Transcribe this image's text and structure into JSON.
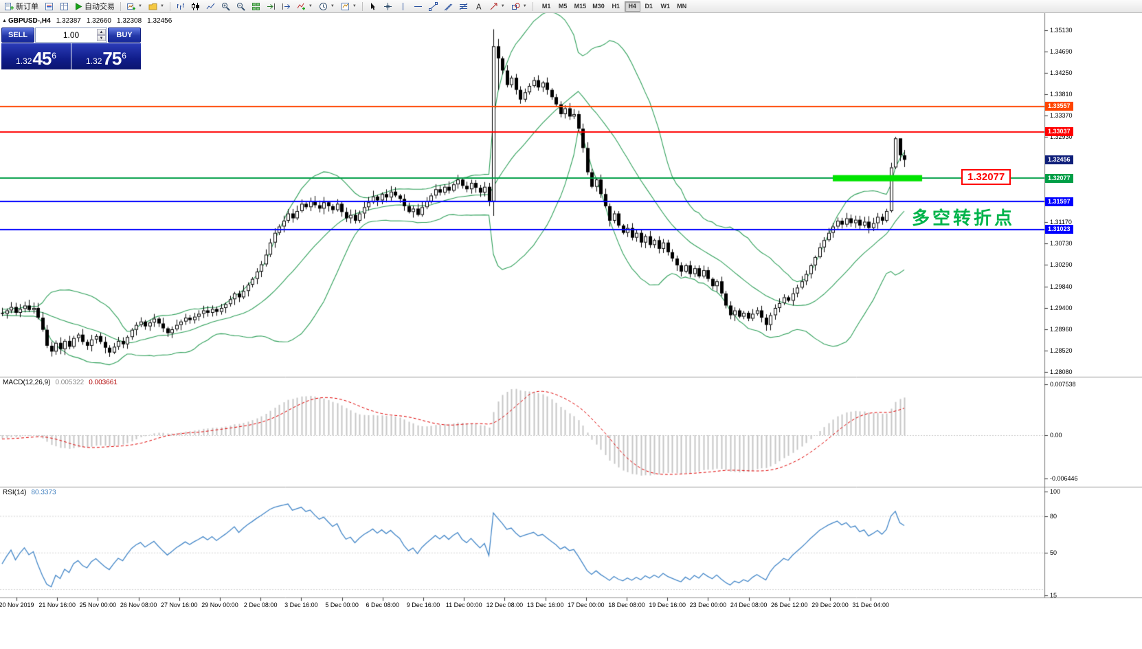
{
  "icons": {
    "collapse_triangle": "▲",
    "dropdown_caret": "▼",
    "spinner_up": "▲",
    "spinner_down": "▼"
  },
  "toolbar": {
    "new_order_label": "新订单",
    "autotrade_label": "自动交易",
    "timeframes": [
      "M1",
      "M5",
      "M15",
      "M30",
      "H1",
      "H4",
      "D1",
      "W1",
      "MN"
    ],
    "active_timeframe": "H4"
  },
  "chart": {
    "title": {
      "symbol_period": "GBPUSD-,H4",
      "open": "1.32387",
      "high": "1.32660",
      "low": "1.32308",
      "close": "1.32456"
    },
    "trade_panel": {
      "sell_label": "SELL",
      "buy_label": "BUY",
      "volume": "1.00",
      "sell_price": {
        "base": "1.32",
        "pips": "45",
        "point": "6"
      },
      "buy_price": {
        "base": "1.32",
        "pips": "75",
        "point": "6"
      }
    },
    "annotations": {
      "turning_point_text": "多空转折点",
      "turning_point_color": "#00B34A",
      "price_label_text": "1.32077",
      "price_label_color": "#FF0000"
    }
  },
  "chart_data": {
    "type": "candlestick",
    "symbol": "GBPUSD-",
    "timeframe": "H4",
    "price_axis_range": {
      "top": 1.35499,
      "bottom": 1.27995
    },
    "price_axis_ticks": [
      "1.35130",
      "1.34690",
      "1.34250",
      "1.33810",
      "1.33370",
      "1.32930",
      "1.31170",
      "1.30730",
      "1.30290",
      "1.29840",
      "1.29400",
      "1.28960",
      "1.28520",
      "1.28080"
    ],
    "price_tags": [
      {
        "text": "1.33557",
        "color": "#FF4500"
      },
      {
        "text": "1.33037",
        "color": "#FF0000"
      },
      {
        "text": "1.32456",
        "color": "#0F1F7A"
      },
      {
        "text": "1.32077",
        "color": "#009E46"
      },
      {
        "text": "1.31597",
        "color": "#0000FF"
      },
      {
        "text": "1.31023",
        "color": "#0000FF"
      }
    ],
    "hlines": [
      {
        "price": 1.33557,
        "color": "#FF4500",
        "width": 2
      },
      {
        "price": 1.33037,
        "color": "#FF0000",
        "width": 2
      },
      {
        "price": 1.32077,
        "color": "#009E46",
        "width": 2
      },
      {
        "price": 1.31597,
        "color": "#0000FF",
        "width": 2
      },
      {
        "price": 1.31023,
        "color": "#0000FF",
        "width": 2
      }
    ],
    "green_zone": {
      "price": 1.32077,
      "from_bar": 186,
      "to_bar": 206,
      "color": "#00E400",
      "height": 9
    },
    "bollinger": {
      "period": 20,
      "deviation": 2,
      "color": "#2FA05A"
    },
    "macd": {
      "label": "MACD(12,26,9)",
      "main_value": "0.005322",
      "signal_value": "0.003661",
      "axis_ticks": [
        "0.007538",
        "0.00",
        "-0.006446"
      ],
      "hist_color": "#C6C6C6",
      "signal_color": "#E00000"
    },
    "rsi": {
      "label": "RSI(14)",
      "value": "80.3373",
      "axis_ticks": [
        "100",
        "80",
        "50",
        "15"
      ],
      "levels": [
        80,
        50,
        20
      ],
      "color": "#4286C8"
    },
    "time_labels": [
      "20 Nov 2019",
      "21 Nov 16:00",
      "25 Nov 00:00",
      "26 Nov 08:00",
      "27 Nov 16:00",
      "29 Nov 00:00",
      "2 Dec 08:00",
      "3 Dec 16:00",
      "5 Dec 00:00",
      "6 Dec 08:00",
      "9 Dec 16:00",
      "11 Dec 00:00",
      "12 Dec 08:00",
      "13 Dec 16:00",
      "17 Dec 00:00",
      "18 Dec 08:00",
      "19 Dec 16:00",
      "23 Dec 00:00",
      "24 Dec 08:00",
      "26 Dec 12:00",
      "29 Dec 20:00",
      "31 Dec 04:00"
    ],
    "pre_closes": [
      1.2962,
      1.2956,
      1.296,
      1.2952,
      1.2948,
      1.2953,
      1.2946,
      1.294,
      1.2944,
      1.2938,
      1.2942,
      1.2936,
      1.2931,
      1.2937,
      1.2932,
      1.2928,
      1.2934,
      1.293,
      1.2936,
      1.2931,
      1.2927,
      1.2933,
      1.2929,
      1.2935,
      1.293,
      1.2926,
      1.2932,
      1.2928,
      1.2933,
      1.293
    ],
    "closes": [
      1.2928,
      1.2935,
      1.2942,
      1.293,
      1.2938,
      1.2945,
      1.2936,
      1.294,
      1.292,
      1.2895,
      1.2862,
      1.285,
      1.2868,
      1.2855,
      1.2872,
      1.286,
      1.2878,
      1.2885,
      1.287,
      1.2862,
      1.2875,
      1.2882,
      1.287,
      1.2858,
      1.2848,
      1.286,
      1.2872,
      1.2865,
      1.288,
      1.2895,
      1.2905,
      1.2912,
      1.2902,
      1.291,
      1.2918,
      1.2908,
      1.2898,
      1.2888,
      1.2896,
      1.2905,
      1.2912,
      1.292,
      1.2915,
      1.2922,
      1.2928,
      1.2935,
      1.293,
      1.2938,
      1.2932,
      1.294,
      1.2948,
      1.2958,
      1.297,
      1.2962,
      1.2975,
      1.2988,
      1.3,
      1.3015,
      1.303,
      1.305,
      1.3075,
      1.3095,
      1.3108,
      1.312,
      1.3135,
      1.3125,
      1.314,
      1.3155,
      1.3148,
      1.316,
      1.3152,
      1.3145,
      1.3158,
      1.315,
      1.3142,
      1.3155,
      1.3138,
      1.3125,
      1.3132,
      1.312,
      1.3135,
      1.3148,
      1.3158,
      1.317,
      1.3162,
      1.3175,
      1.3168,
      1.318,
      1.3172,
      1.3165,
      1.315,
      1.3138,
      1.3145,
      1.3132,
      1.3148,
      1.316,
      1.3172,
      1.3185,
      1.3178,
      1.319,
      1.3182,
      1.3195,
      1.3205,
      1.3192,
      1.3185,
      1.3198,
      1.3188,
      1.3178,
      1.319,
      1.316,
      1.348,
      1.3455,
      1.343,
      1.34,
      1.3415,
      1.339,
      1.337,
      1.3385,
      1.3398,
      1.341,
      1.3395,
      1.3405,
      1.339,
      1.3375,
      1.336,
      1.334,
      1.3352,
      1.3335,
      1.334,
      1.331,
      1.327,
      1.322,
      1.319,
      1.3205,
      1.3175,
      1.315,
      1.312,
      1.3135,
      1.311,
      1.3095,
      1.3105,
      1.3085,
      1.3095,
      1.3075,
      1.3088,
      1.307,
      1.308,
      1.3062,
      1.3075,
      1.3055,
      1.3042,
      1.3028,
      1.3015,
      1.3028,
      1.301,
      1.3022,
      1.3005,
      1.3018,
      1.3,
      1.2985,
      1.2995,
      1.297,
      1.2945,
      1.2925,
      1.2935,
      1.2922,
      1.293,
      1.2918,
      1.2928,
      1.2935,
      1.292,
      1.2905,
      1.2925,
      1.294,
      1.295,
      1.2962,
      1.2955,
      1.297,
      1.2982,
      1.2995,
      1.301,
      1.3028,
      1.3045,
      1.3065,
      1.308,
      1.3095,
      1.3108,
      1.312,
      1.3112,
      1.3125,
      1.3115,
      1.3122,
      1.311,
      1.3118,
      1.3105,
      1.3115,
      1.3128,
      1.312,
      1.314,
      1.323,
      1.329,
      1.3255,
      1.32456
    ],
    "wick_overrides": {
      "110": {
        "h": 1.3515,
        "l": 1.313
      },
      "111": {
        "h": 1.3495,
        "l": 1.339
      },
      "200": {
        "h": 1.3293
      },
      "201": {
        "h": 1.328
      },
      "202": {
        "h": 1.3266,
        "l": 1.32308
      }
    }
  }
}
